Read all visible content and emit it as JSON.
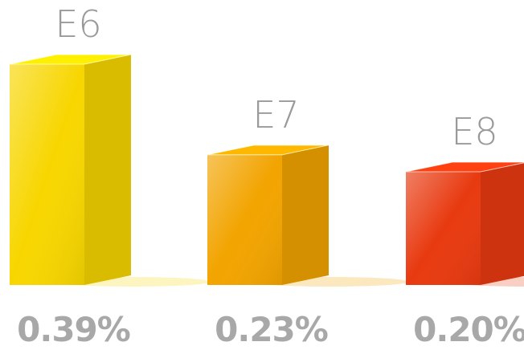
{
  "chart_data": {
    "type": "bar3d",
    "categories": [
      "E6",
      "E7",
      "E8"
    ],
    "values": [
      0.39,
      0.23,
      0.2
    ],
    "value_labels": [
      "0.39%",
      "0.23%",
      "0.20%"
    ],
    "colors": [
      "#f7d600",
      "#f2a400",
      "#e83a10"
    ]
  }
}
